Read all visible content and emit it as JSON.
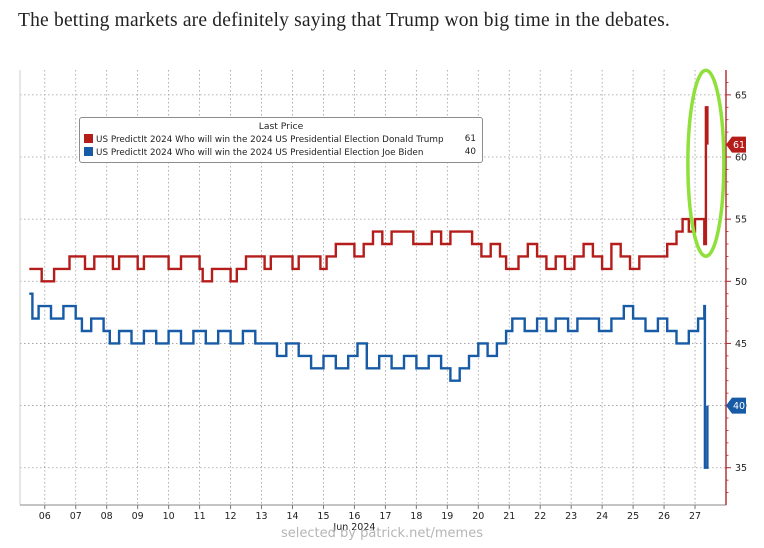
{
  "headline": "The betting markets are definitely saying that Trump won big time in the debates.",
  "credit": "selected by patrick.net/memes",
  "colors": {
    "trump": "#b51d1b",
    "biden": "#175ba6",
    "highlight": "#8fe03a",
    "grid": "#9a9a9a",
    "axis": "#b0282b"
  },
  "chart_data": {
    "type": "line",
    "xlabel": "Jun 2024",
    "x_ticks": [
      "06",
      "07",
      "08",
      "09",
      "10",
      "11",
      "12",
      "13",
      "14",
      "15",
      "16",
      "17",
      "18",
      "19",
      "20",
      "21",
      "22",
      "23",
      "24",
      "25",
      "26",
      "27"
    ],
    "ylim": [
      32,
      67
    ],
    "y_ticks": [
      35,
      40,
      45,
      50,
      55,
      60,
      65
    ],
    "grid": true,
    "legend_title": "Last Price",
    "legend_position": "top-left",
    "series": [
      {
        "name": "US PredictIt 2024 Who will win the 2024 US Presidential Election Donald Trump",
        "last": 61,
        "last_label": "61",
        "color": "#b51d1b",
        "points": [
          [
            5.5,
            51
          ],
          [
            5.8,
            51
          ],
          [
            5.9,
            50
          ],
          [
            6.1,
            50
          ],
          [
            6.3,
            51
          ],
          [
            6.6,
            51
          ],
          [
            6.8,
            52
          ],
          [
            7.1,
            52
          ],
          [
            7.3,
            51
          ],
          [
            7.6,
            52
          ],
          [
            8.0,
            52
          ],
          [
            8.2,
            51
          ],
          [
            8.4,
            52
          ],
          [
            8.8,
            52
          ],
          [
            9.0,
            51
          ],
          [
            9.2,
            52
          ],
          [
            9.6,
            52
          ],
          [
            10.0,
            51
          ],
          [
            10.4,
            52
          ],
          [
            10.8,
            52
          ],
          [
            11.0,
            51
          ],
          [
            11.1,
            50
          ],
          [
            11.4,
            51
          ],
          [
            11.8,
            51
          ],
          [
            12.0,
            50
          ],
          [
            12.2,
            51
          ],
          [
            12.5,
            52
          ],
          [
            12.9,
            52
          ],
          [
            13.1,
            51
          ],
          [
            13.3,
            52
          ],
          [
            13.7,
            52
          ],
          [
            14.0,
            51
          ],
          [
            14.2,
            52
          ],
          [
            14.6,
            52
          ],
          [
            14.9,
            51
          ],
          [
            15.1,
            52
          ],
          [
            15.4,
            53
          ],
          [
            15.7,
            53
          ],
          [
            16.0,
            52
          ],
          [
            16.3,
            53
          ],
          [
            16.6,
            54
          ],
          [
            16.9,
            53
          ],
          [
            17.2,
            54
          ],
          [
            17.6,
            54
          ],
          [
            17.9,
            53
          ],
          [
            18.2,
            53
          ],
          [
            18.5,
            54
          ],
          [
            18.8,
            53
          ],
          [
            19.1,
            54
          ],
          [
            19.5,
            54
          ],
          [
            19.8,
            53
          ],
          [
            20.1,
            52
          ],
          [
            20.4,
            53
          ],
          [
            20.7,
            52
          ],
          [
            20.9,
            51
          ],
          [
            21.3,
            52
          ],
          [
            21.6,
            53
          ],
          [
            21.9,
            52
          ],
          [
            22.2,
            51
          ],
          [
            22.5,
            52
          ],
          [
            22.8,
            51
          ],
          [
            23.1,
            52
          ],
          [
            23.4,
            53
          ],
          [
            23.7,
            52
          ],
          [
            24.0,
            51
          ],
          [
            24.3,
            53
          ],
          [
            24.6,
            52
          ],
          [
            24.9,
            51
          ],
          [
            25.2,
            52
          ],
          [
            25.5,
            52
          ],
          [
            25.8,
            52
          ],
          [
            26.1,
            53
          ],
          [
            26.4,
            54
          ],
          [
            26.6,
            55
          ],
          [
            26.8,
            54
          ],
          [
            27.0,
            55
          ],
          [
            27.3,
            53
          ],
          [
            27.35,
            64
          ],
          [
            27.4,
            61
          ]
        ]
      },
      {
        "name": "US PredictIt 2024 Who will win the 2024 US Presidential Election Joe Biden",
        "last": 40,
        "last_label": "40",
        "color": "#175ba6",
        "points": [
          [
            5.5,
            49
          ],
          [
            5.6,
            47
          ],
          [
            5.8,
            48
          ],
          [
            6.2,
            47
          ],
          [
            6.6,
            48
          ],
          [
            7.0,
            47
          ],
          [
            7.2,
            46
          ],
          [
            7.5,
            47
          ],
          [
            7.9,
            46
          ],
          [
            8.1,
            45
          ],
          [
            8.4,
            46
          ],
          [
            8.8,
            45
          ],
          [
            9.2,
            46
          ],
          [
            9.6,
            45
          ],
          [
            10.0,
            46
          ],
          [
            10.4,
            45
          ],
          [
            10.8,
            46
          ],
          [
            11.2,
            45
          ],
          [
            11.6,
            46
          ],
          [
            12.0,
            45
          ],
          [
            12.4,
            46
          ],
          [
            12.8,
            45
          ],
          [
            13.2,
            45
          ],
          [
            13.5,
            44
          ],
          [
            13.8,
            45
          ],
          [
            14.2,
            44
          ],
          [
            14.6,
            43
          ],
          [
            15.0,
            44
          ],
          [
            15.4,
            43
          ],
          [
            15.8,
            44
          ],
          [
            16.1,
            45
          ],
          [
            16.4,
            43
          ],
          [
            16.8,
            44
          ],
          [
            17.2,
            43
          ],
          [
            17.6,
            44
          ],
          [
            18.0,
            43
          ],
          [
            18.4,
            44
          ],
          [
            18.8,
            43
          ],
          [
            19.1,
            42
          ],
          [
            19.4,
            43
          ],
          [
            19.7,
            44
          ],
          [
            20.0,
            45
          ],
          [
            20.3,
            44
          ],
          [
            20.6,
            45
          ],
          [
            20.9,
            46
          ],
          [
            21.1,
            47
          ],
          [
            21.5,
            46
          ],
          [
            21.9,
            47
          ],
          [
            22.2,
            46
          ],
          [
            22.5,
            47
          ],
          [
            22.9,
            46
          ],
          [
            23.2,
            47
          ],
          [
            23.6,
            47
          ],
          [
            23.9,
            46
          ],
          [
            24.3,
            47
          ],
          [
            24.7,
            48
          ],
          [
            25.0,
            47
          ],
          [
            25.4,
            46
          ],
          [
            25.8,
            47
          ],
          [
            26.1,
            46
          ],
          [
            26.4,
            45
          ],
          [
            26.8,
            46
          ],
          [
            27.1,
            47
          ],
          [
            27.3,
            48
          ],
          [
            27.32,
            35
          ],
          [
            27.4,
            40
          ]
        ]
      }
    ]
  }
}
